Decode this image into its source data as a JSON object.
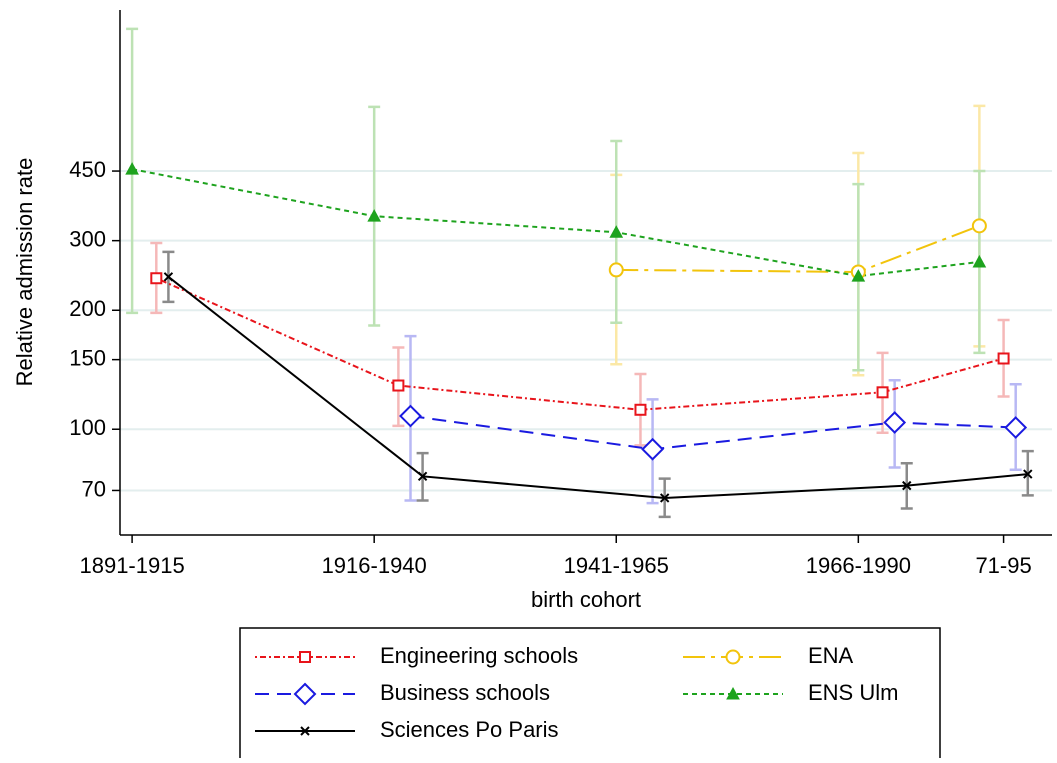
{
  "chart_data": {
    "type": "line",
    "y_label": "Relative admission rate",
    "x_label": "birth cohort",
    "log_y": true,
    "grid": true,
    "xlim": [
      0.95,
      4.8
    ],
    "ylim": [
      54,
      1150
    ],
    "xticks": [
      {
        "value": 1,
        "label": "1891-1915"
      },
      {
        "value": 2,
        "label": "1916-1940"
      },
      {
        "value": 3,
        "label": "1941-1965"
      },
      {
        "value": 4,
        "label": "1966-1990"
      },
      {
        "value": 4.6,
        "label": "71-95"
      }
    ],
    "yticks": [
      70,
      100,
      150,
      200,
      300,
      450
    ],
    "legend_position": "bottom",
    "series": [
      {
        "name": "Engineering schools",
        "color": "#e8141b",
        "ci_color": "#f5b8b8",
        "marker": "square",
        "dash": "2,3,6,3",
        "x": [
          1.1,
          2.1,
          3.1,
          4.1,
          4.6
        ],
        "values": [
          241,
          129,
          112,
          124,
          151
        ],
        "lower": [
          197,
          102,
          91,
          98,
          121
        ],
        "upper": [
          296,
          161,
          138,
          156,
          189
        ]
      },
      {
        "name": "ENA",
        "color": "#f2c40c",
        "ci_color": "#fbe8a6",
        "marker": "circle",
        "dash": "22,6,4,6",
        "x": [
          3,
          4,
          4.5
        ],
        "values": [
          253,
          250,
          327
        ],
        "lower": [
          146,
          137,
          162
        ],
        "upper": [
          440,
          500,
          658
        ]
      },
      {
        "name": "Business schools",
        "color": "#1a1ae0",
        "ci_color": "#b8b8f4",
        "marker": "diamond",
        "dash": "14,8",
        "x": [
          2.15,
          3.15,
          4.15,
          4.65
        ],
        "values": [
          108,
          89,
          104,
          101
        ],
        "lower": [
          66,
          65,
          80,
          79
        ],
        "upper": [
          172,
          119,
          133,
          130
        ]
      },
      {
        "name": "ENS Ulm",
        "color": "#1ea31e",
        "ci_color": "#bde2b4",
        "marker": "triangle",
        "dash": "5,4",
        "x": [
          1,
          2,
          3,
          4,
          4.5
        ],
        "values": [
          455,
          346,
          315,
          244,
          265
        ],
        "lower": [
          197,
          183,
          186,
          141,
          156
        ],
        "upper": [
          1030,
          654,
          536,
          417,
          450
        ]
      },
      {
        "name": "Sciences Po Paris",
        "color": "#000000",
        "ci_color": "#8a8a8a",
        "marker": "x",
        "dash": "",
        "x": [
          1.15,
          2.2,
          3.2,
          4.2,
          4.7
        ],
        "values": [
          243,
          76,
          67,
          72,
          77
        ],
        "lower": [
          210,
          66,
          60,
          63,
          68
        ],
        "upper": [
          281,
          87,
          75,
          82,
          88
        ]
      }
    ]
  }
}
